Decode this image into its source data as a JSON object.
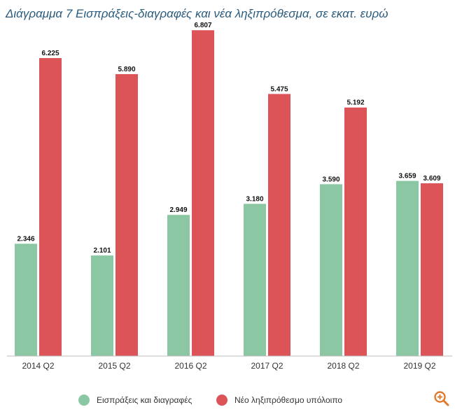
{
  "title": "Διάγραμμα 7 Εισπράξεις-διαγραφές και νέα ληξιπρόθεσμα, σε εκατ. ευρώ",
  "zoom_icon": "zoom-in-icon",
  "chart_data": {
    "type": "bar",
    "categories": [
      "2014 Q2",
      "2015 Q2",
      "2016 Q2",
      "2017 Q2",
      "2018 Q2",
      "2019 Q2"
    ],
    "series": [
      {
        "name": "Εισπράξεις και διαγραφές",
        "color": "#8cc7a3",
        "values": [
          2346,
          2101,
          2949,
          3180,
          3590,
          3659
        ],
        "labels": [
          "2.346",
          "2.101",
          "2.949",
          "3.180",
          "3.590",
          "3.659"
        ]
      },
      {
        "name": "Νέο ληξιπρόθεσμο υπόλοιπο",
        "color": "#dc5458",
        "values": [
          6225,
          5890,
          6807,
          5475,
          5192,
          3609
        ],
        "labels": [
          "6.225",
          "5.890",
          "6.807",
          "5.475",
          "5.192",
          "3.609"
        ]
      }
    ],
    "ylim": [
      0,
      7000
    ],
    "grid": false,
    "legend_position": "bottom"
  }
}
